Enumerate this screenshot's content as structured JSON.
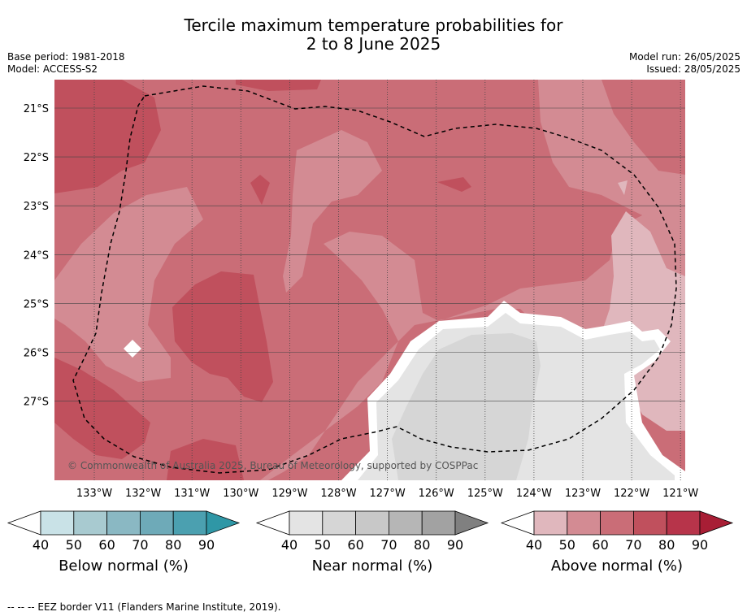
{
  "header": {
    "title_line1": "Tercile maximum temperature probabilities for",
    "title_line2": "2 to 8 June 2025",
    "base_period": "Base period: 1981-2018",
    "model": "Model: ACCESS-S2",
    "model_run": "Model run: 26/05/2025",
    "issued": "Issued: 28/05/2025"
  },
  "map": {
    "copyright": "© Commonwealth of Australia 2025, Bureau of Meteorology, supported by COSPPac",
    "eez_legend": "--  --  -- EEZ border V11 (Flanders Marine Institute, 2019)."
  },
  "chart_data": {
    "type": "heatmap",
    "title": "Tercile maximum temperature probabilities for 2 to 8 June 2025",
    "x_ticks": [
      "133°W",
      "132°W",
      "131°W",
      "130°W",
      "129°W",
      "128°W",
      "127°W",
      "126°W",
      "125°W",
      "124°W",
      "123°W",
      "122°W",
      "121°W"
    ],
    "y_ticks": [
      "21°S",
      "22°S",
      "23°S",
      "24°S",
      "25°S",
      "26°S",
      "27°S"
    ],
    "xlim": [
      "133.8°W",
      "120.9°W"
    ],
    "ylim": [
      "28.6°S",
      "20.4°S"
    ],
    "grid": true,
    "dominant_category": "Above normal",
    "near_normal_region": "south-east, approx 127.5°W–120.9°W, 25.0°S–28.6°S",
    "colorbars": [
      {
        "label": "Below normal (%)",
        "ticks": [
          "40",
          "50",
          "60",
          "70",
          "80",
          "90"
        ],
        "colors": [
          "#ffffff",
          "#c9e2e7",
          "#a8cad0",
          "#8ab8c3",
          "#6eaab8",
          "#4ba0b0",
          "#2f97a6"
        ]
      },
      {
        "label": "Near normal (%)",
        "ticks": [
          "40",
          "50",
          "60",
          "70",
          "80",
          "90"
        ],
        "colors": [
          "#ffffff",
          "#e4e4e4",
          "#d6d6d6",
          "#c8c8c8",
          "#b6b6b6",
          "#a2a2a2",
          "#808080"
        ]
      },
      {
        "label": "Above normal (%)",
        "ticks": [
          "40",
          "50",
          "60",
          "70",
          "80",
          "90"
        ],
        "colors": [
          "#ffffff",
          "#e0b7bd",
          "#d38b93",
          "#ca6d77",
          "#c0505d",
          "#b7344a",
          "#a81e35"
        ]
      }
    ]
  }
}
